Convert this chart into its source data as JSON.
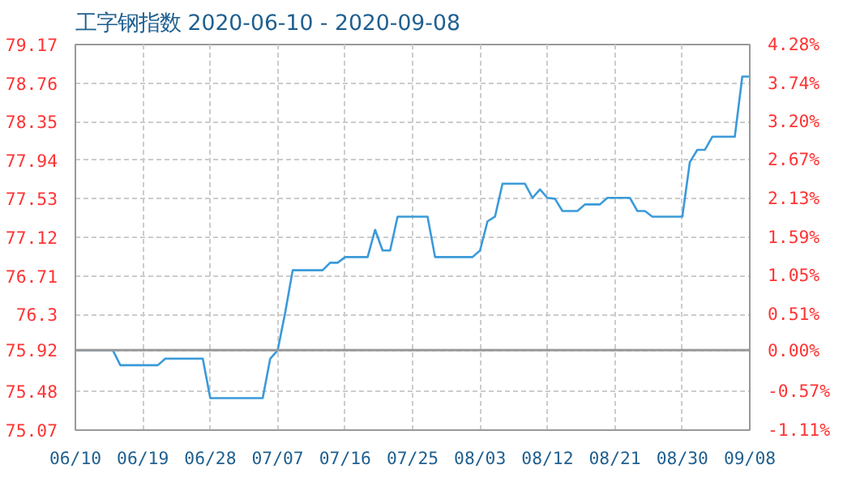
{
  "chart_data": {
    "type": "line",
    "title": "工字钢指数 2020-06-10 - 2020-09-08",
    "x": [
      "2020-06-10",
      "2020-06-15",
      "2020-06-16",
      "2020-06-21",
      "2020-06-22",
      "2020-06-27",
      "2020-06-28",
      "2020-07-05",
      "2020-07-06",
      "2020-07-07",
      "2020-07-08",
      "2020-07-09",
      "2020-07-13",
      "2020-07-14",
      "2020-07-15",
      "2020-07-16",
      "2020-07-19",
      "2020-07-20",
      "2020-07-21",
      "2020-07-22",
      "2020-07-23",
      "2020-07-27",
      "2020-07-28",
      "2020-08-02",
      "2020-08-03",
      "2020-08-04",
      "2020-08-05",
      "2020-08-06",
      "2020-08-09",
      "2020-08-10",
      "2020-08-11",
      "2020-08-12",
      "2020-08-13",
      "2020-08-14",
      "2020-08-16",
      "2020-08-17",
      "2020-08-19",
      "2020-08-20",
      "2020-08-23",
      "2020-08-24",
      "2020-08-25",
      "2020-08-26",
      "2020-08-30",
      "2020-08-31",
      "2020-09-01",
      "2020-09-02",
      "2020-09-03",
      "2020-09-06",
      "2020-09-07",
      "2020-09-08"
    ],
    "series": [
      {
        "color": "#3a9ad9",
        "values": [
          75.92,
          75.92,
          75.76,
          75.76,
          75.83,
          75.83,
          75.41,
          75.41,
          75.83,
          75.92,
          76.32,
          76.77,
          76.77,
          76.85,
          76.85,
          76.91,
          76.91,
          77.2,
          76.98,
          76.98,
          77.34,
          77.34,
          76.91,
          76.91,
          76.98,
          77.29,
          77.34,
          77.69,
          77.69,
          77.54,
          77.63,
          77.54,
          77.53,
          77.4,
          77.4,
          77.47,
          77.47,
          77.54,
          77.54,
          77.4,
          77.4,
          77.34,
          77.34,
          77.92,
          78.05,
          78.05,
          78.19,
          78.19,
          78.83,
          78.83
        ]
      }
    ],
    "xlim": [
      "2020-06-10",
      "2020-09-08"
    ],
    "xticks": [
      {
        "value": "2020-06-10",
        "label": "06/10"
      },
      {
        "value": "2020-06-19",
        "label": "06/19"
      },
      {
        "value": "2020-06-28",
        "label": "06/28"
      },
      {
        "value": "2020-07-07",
        "label": "07/07"
      },
      {
        "value": "2020-07-16",
        "label": "07/16"
      },
      {
        "value": "2020-07-25",
        "label": "07/25"
      },
      {
        "value": "2020-08-03",
        "label": "08/03"
      },
      {
        "value": "2020-08-12",
        "label": "08/12"
      },
      {
        "value": "2020-08-21",
        "label": "08/21"
      },
      {
        "value": "2020-08-30",
        "label": "08/30"
      },
      {
        "value": "2020-09-08",
        "label": "09/08"
      }
    ],
    "ylim": [
      75.07,
      79.17
    ],
    "yticks": [
      75.07,
      75.48,
      75.92,
      {
        "value": 76.3,
        "label": "76.3"
      },
      76.71,
      77.12,
      77.53,
      77.94,
      78.35,
      78.76,
      79.17
    ],
    "y2lim": [
      -1.11,
      4.28
    ],
    "y2ticks": [
      {
        "value": -1.11,
        "label": "-1.11%"
      },
      {
        "value": -0.57,
        "label": "-0.57%"
      },
      {
        "value": 0,
        "label": "0.00%"
      },
      {
        "value": 0.51,
        "label": "0.51%"
      },
      {
        "value": 1.05,
        "label": "1.05%"
      },
      {
        "value": 1.59,
        "label": "1.59%"
      },
      {
        "value": 2.13,
        "label": "2.13%"
      },
      {
        "value": 2.67,
        "label": "2.67%"
      },
      {
        "value": 3.2,
        "label": "3.20%"
      },
      {
        "value": 3.74,
        "label": "3.74%"
      },
      {
        "value": 4.28,
        "label": "4.28%"
      }
    ],
    "ref_lines": [
      {
        "axis": "y",
        "value": 75.92,
        "color": "#999999"
      }
    ],
    "grid": true,
    "marker": "none",
    "line_style": "solid"
  }
}
